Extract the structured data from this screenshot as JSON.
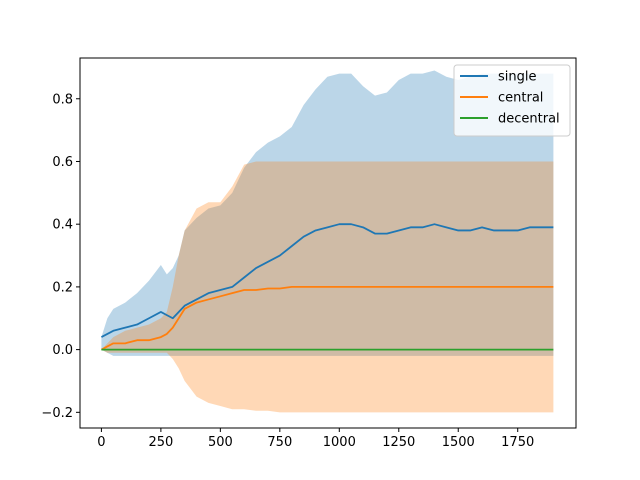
{
  "chart_data": {
    "type": "line",
    "title": "",
    "xlabel": "",
    "ylabel": "",
    "xlim": [
      -90,
      1995
    ],
    "ylim": [
      -0.25,
      0.93
    ],
    "grid": false,
    "legend_position": "top-right",
    "x_ticks": [
      0,
      250,
      500,
      750,
      1000,
      1250,
      1500,
      1750
    ],
    "x_tick_labels": [
      "0",
      "250",
      "500",
      "750",
      "1000",
      "1250",
      "1500",
      "1750"
    ],
    "y_ticks": [
      -0.2,
      0.0,
      0.2,
      0.4,
      0.6,
      0.8
    ],
    "y_tick_labels": [
      "−0.2",
      "0.0",
      "0.2",
      "0.4",
      "0.6",
      "0.8"
    ],
    "series": [
      {
        "name": "single",
        "color": "#1f77b4",
        "band_color": "#1f77b4",
        "band_opacity": 0.3,
        "x": [
          0,
          25,
          50,
          100,
          150,
          200,
          250,
          275,
          300,
          325,
          350,
          400,
          450,
          500,
          550,
          600,
          650,
          700,
          750,
          800,
          850,
          900,
          950,
          1000,
          1050,
          1100,
          1150,
          1200,
          1250,
          1300,
          1350,
          1400,
          1450,
          1500,
          1550,
          1600,
          1650,
          1700,
          1750,
          1800,
          1850,
          1900
        ],
        "y": [
          0.04,
          0.05,
          0.06,
          0.07,
          0.08,
          0.1,
          0.12,
          0.11,
          0.1,
          0.12,
          0.14,
          0.16,
          0.18,
          0.19,
          0.2,
          0.23,
          0.26,
          0.28,
          0.3,
          0.33,
          0.36,
          0.38,
          0.39,
          0.4,
          0.4,
          0.39,
          0.37,
          0.37,
          0.38,
          0.39,
          0.39,
          0.4,
          0.39,
          0.38,
          0.38,
          0.39,
          0.38,
          0.38,
          0.38,
          0.39,
          0.39,
          0.39
        ],
        "upper": [
          0.04,
          0.1,
          0.13,
          0.15,
          0.18,
          0.22,
          0.27,
          0.24,
          0.26,
          0.3,
          0.38,
          0.42,
          0.45,
          0.46,
          0.5,
          0.58,
          0.63,
          0.66,
          0.68,
          0.71,
          0.78,
          0.83,
          0.87,
          0.88,
          0.88,
          0.84,
          0.81,
          0.82,
          0.86,
          0.88,
          0.88,
          0.89,
          0.87,
          0.86,
          0.87,
          0.88,
          0.88,
          0.88,
          0.88,
          0.88,
          0.88,
          0.88
        ],
        "lower": [
          0.0,
          -0.01,
          -0.02,
          -0.02,
          -0.02,
          -0.02,
          -0.02,
          -0.02,
          -0.02,
          -0.02,
          -0.02,
          -0.02,
          -0.02,
          -0.02,
          -0.02,
          -0.02,
          -0.02,
          -0.02,
          -0.02,
          -0.02,
          -0.02,
          -0.02,
          -0.02,
          -0.02,
          -0.02,
          -0.02,
          -0.02,
          -0.02,
          -0.02,
          -0.02,
          -0.02,
          -0.02,
          -0.02,
          -0.02,
          -0.02,
          -0.02,
          -0.02,
          -0.02,
          -0.02,
          -0.02,
          -0.02,
          -0.02
        ]
      },
      {
        "name": "central",
        "color": "#ff7f0e",
        "band_color": "#ff7f0e",
        "band_opacity": 0.3,
        "x": [
          0,
          25,
          50,
          100,
          150,
          200,
          250,
          275,
          300,
          325,
          350,
          400,
          450,
          500,
          550,
          600,
          650,
          700,
          750,
          800,
          900,
          1000,
          1100,
          1200,
          1300,
          1400,
          1500,
          1600,
          1700,
          1800,
          1900
        ],
        "y": [
          0.0,
          0.01,
          0.02,
          0.02,
          0.03,
          0.03,
          0.04,
          0.05,
          0.07,
          0.1,
          0.13,
          0.15,
          0.16,
          0.17,
          0.18,
          0.19,
          0.19,
          0.195,
          0.195,
          0.2,
          0.2,
          0.2,
          0.2,
          0.2,
          0.2,
          0.2,
          0.2,
          0.2,
          0.2,
          0.2,
          0.2
        ],
        "upper": [
          0.0,
          0.02,
          0.04,
          0.06,
          0.07,
          0.08,
          0.1,
          0.12,
          0.2,
          0.3,
          0.38,
          0.45,
          0.47,
          0.47,
          0.52,
          0.59,
          0.6,
          0.6,
          0.6,
          0.6,
          0.6,
          0.6,
          0.6,
          0.6,
          0.6,
          0.6,
          0.6,
          0.6,
          0.6,
          0.6,
          0.6
        ],
        "lower": [
          0.0,
          -0.01,
          -0.01,
          -0.01,
          -0.01,
          -0.01,
          -0.01,
          -0.01,
          -0.03,
          -0.06,
          -0.1,
          -0.15,
          -0.17,
          -0.18,
          -0.19,
          -0.19,
          -0.195,
          -0.195,
          -0.2,
          -0.2,
          -0.2,
          -0.2,
          -0.2,
          -0.2,
          -0.2,
          -0.2,
          -0.2,
          -0.2,
          -0.2,
          -0.2,
          -0.2
        ]
      },
      {
        "name": "decentral",
        "color": "#2ca02c",
        "x": [
          0,
          1900
        ],
        "y": [
          0.0,
          0.0
        ]
      }
    ]
  }
}
